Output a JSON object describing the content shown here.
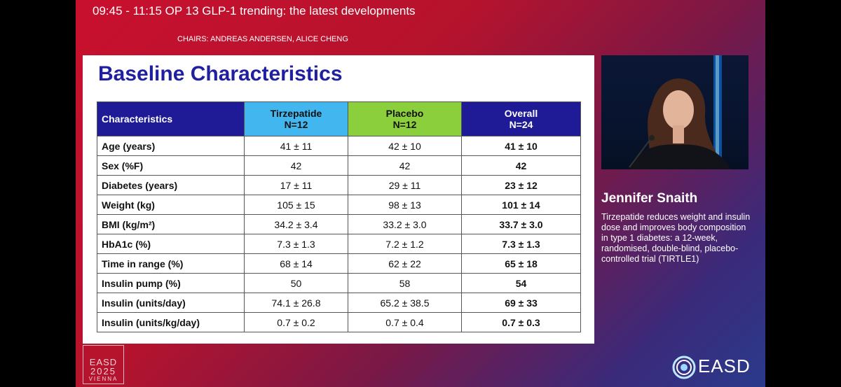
{
  "header": {
    "session_title": "09:45 - 11:15   OP 13 GLP-1 trending: the latest developments",
    "chairs": "CHAIRS: ANDREAS ANDERSEN, ALICE CHENG"
  },
  "slide": {
    "title": "Baseline Characteristics",
    "columns": [
      {
        "label": "Characteristics",
        "n": ""
      },
      {
        "label": "Tirzepatide",
        "n": "N=12"
      },
      {
        "label": "Placebo",
        "n": "N=12"
      },
      {
        "label": "Overall",
        "n": "N=24"
      }
    ],
    "rows": [
      {
        "label": "Age (years)",
        "tirzepatide": "41 ± 11",
        "placebo": "42 ± 10",
        "overall": "41 ± 10"
      },
      {
        "label": "Sex (%F)",
        "tirzepatide": "42",
        "placebo": "42",
        "overall": "42"
      },
      {
        "label": "Diabetes (years)",
        "tirzepatide": "17 ± 11",
        "placebo": "29 ± 11",
        "overall": "23 ± 12"
      },
      {
        "label": "Weight (kg)",
        "tirzepatide": "105 ± 15",
        "placebo": "98 ± 13",
        "overall": "101 ± 14"
      },
      {
        "label": "BMI (kg/m²)",
        "tirzepatide": "34.2 ± 3.4",
        "placebo": "33.2 ± 3.0",
        "overall": "33.7 ± 3.0"
      },
      {
        "label": "HbA1c (%)",
        "tirzepatide": "7.3 ± 1.3",
        "placebo": "7.2 ± 1.2",
        "overall": "7.3 ± 1.3"
      },
      {
        "label": "Time in range (%)",
        "tirzepatide": "68 ± 14",
        "placebo": "62 ± 22",
        "overall": "65 ± 18"
      },
      {
        "label": "Insulin pump (%)",
        "tirzepatide": "50",
        "placebo": "58",
        "overall": "54"
      },
      {
        "label": "Insulin (units/day)",
        "tirzepatide": "74.1 ± 26.8",
        "placebo": "65.2 ± 38.5",
        "overall": "69 ± 33"
      },
      {
        "label": "Insulin (units/kg/day)",
        "tirzepatide": "0.7 ± 0.2",
        "placebo": "0.7 ± 0.4",
        "overall": "0.7 ± 0.3"
      }
    ]
  },
  "speaker": {
    "name": "Jennifer Snaith",
    "talk_title": "Tirzepatide reduces weight and insulin dose and improves body composition in type 1 diabetes: a 12-week, randomised, double-blind, placebo-controlled trial (TIRTLE1)"
  },
  "logos": {
    "congress_line1": "EASD",
    "congress_line2": "2025",
    "congress_line3": "VIENNA",
    "brand": "EASD"
  }
}
